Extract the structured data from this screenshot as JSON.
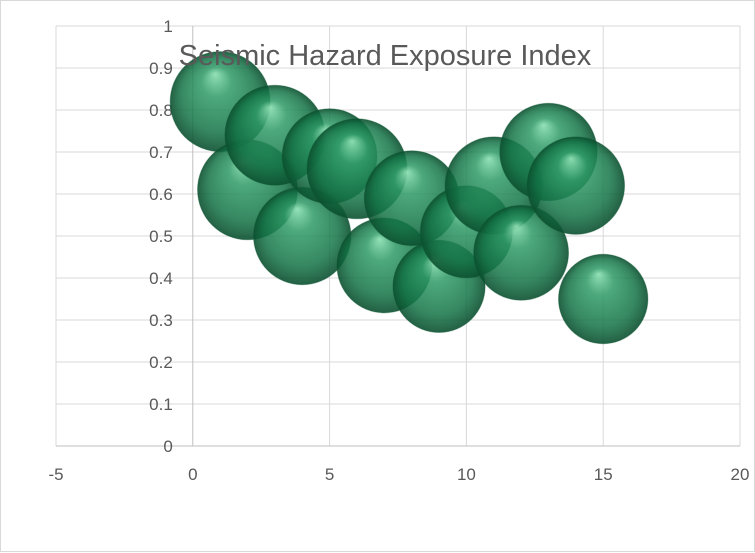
{
  "chart_data": {
    "type": "scatter",
    "subtype": "bubble",
    "title": "Seismic Hazard Exposure Index",
    "xlabel": "",
    "ylabel": "",
    "xlim": [
      -5,
      20
    ],
    "ylim": [
      0,
      1
    ],
    "x_ticks": [
      -5,
      0,
      5,
      10,
      15,
      20
    ],
    "y_ticks": [
      0,
      0.1,
      0.2,
      0.3,
      0.4,
      0.5,
      0.6,
      0.7,
      0.8,
      0.9,
      1
    ],
    "grid": true,
    "legend": "none",
    "series": [
      {
        "color": "#1e7a4e",
        "points": [
          {
            "x": 1,
            "y": 0.82,
            "size": 1.0
          },
          {
            "x": 2,
            "y": 0.61,
            "size": 1.0
          },
          {
            "x": 3,
            "y": 0.74,
            "size": 1.0
          },
          {
            "x": 4,
            "y": 0.5,
            "size": 0.95
          },
          {
            "x": 5,
            "y": 0.69,
            "size": 0.9
          },
          {
            "x": 6,
            "y": 0.66,
            "size": 1.0
          },
          {
            "x": 7,
            "y": 0.43,
            "size": 0.9
          },
          {
            "x": 8,
            "y": 0.59,
            "size": 0.9
          },
          {
            "x": 9,
            "y": 0.38,
            "size": 0.85
          },
          {
            "x": 10,
            "y": 0.51,
            "size": 0.85
          },
          {
            "x": 11,
            "y": 0.62,
            "size": 0.95
          },
          {
            "x": 12,
            "y": 0.46,
            "size": 0.9
          },
          {
            "x": 13,
            "y": 0.7,
            "size": 0.95
          },
          {
            "x": 14,
            "y": 0.62,
            "size": 0.95
          },
          {
            "x": 15,
            "y": 0.35,
            "size": 0.8
          }
        ]
      }
    ]
  }
}
